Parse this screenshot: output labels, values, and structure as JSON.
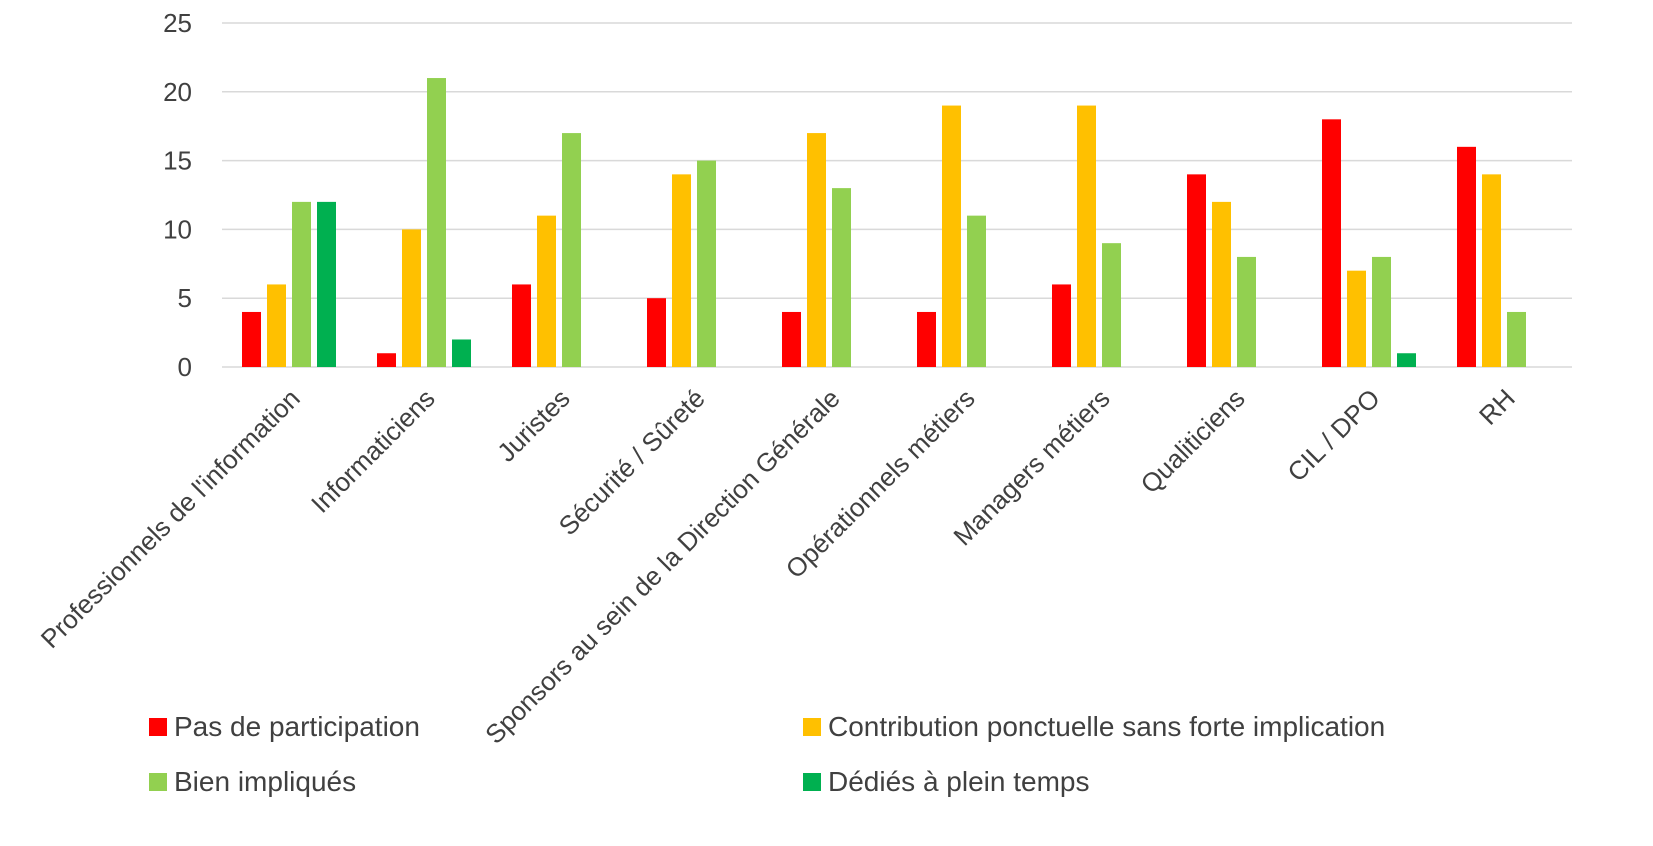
{
  "chart_data": {
    "type": "bar",
    "title": "",
    "xlabel": "",
    "ylabel": "",
    "ylim": [
      0,
      25
    ],
    "yticks": [
      0,
      5,
      10,
      15,
      20,
      25
    ],
    "grid": true,
    "legend_position": "bottom",
    "categories": [
      "Professionnels de l'information",
      "Informaticiens",
      "Juristes",
      "Sécurité / Sûreté",
      "Sponsors au sein de la Direction Générale",
      "Opérationnels métiers",
      "Managers métiers",
      "Qualiticiens",
      "CIL / DPO",
      "RH"
    ],
    "series": [
      {
        "name": "Pas de participation",
        "color": "#ff0000",
        "values": [
          4,
          1,
          6,
          5,
          4,
          4,
          6,
          14,
          18,
          16
        ]
      },
      {
        "name": "Contribution ponctuelle sans forte implication",
        "color": "#ffc000",
        "values": [
          6,
          10,
          11,
          14,
          17,
          19,
          19,
          12,
          7,
          14
        ]
      },
      {
        "name": "Bien impliqués",
        "color": "#92d050",
        "values": [
          12,
          21,
          17,
          15,
          13,
          11,
          9,
          8,
          8,
          4
        ]
      },
      {
        "name": "Dédiés à plein temps",
        "color": "#00b050",
        "values": [
          12,
          2,
          0,
          0,
          0,
          0,
          0,
          0,
          1,
          0
        ]
      }
    ]
  }
}
